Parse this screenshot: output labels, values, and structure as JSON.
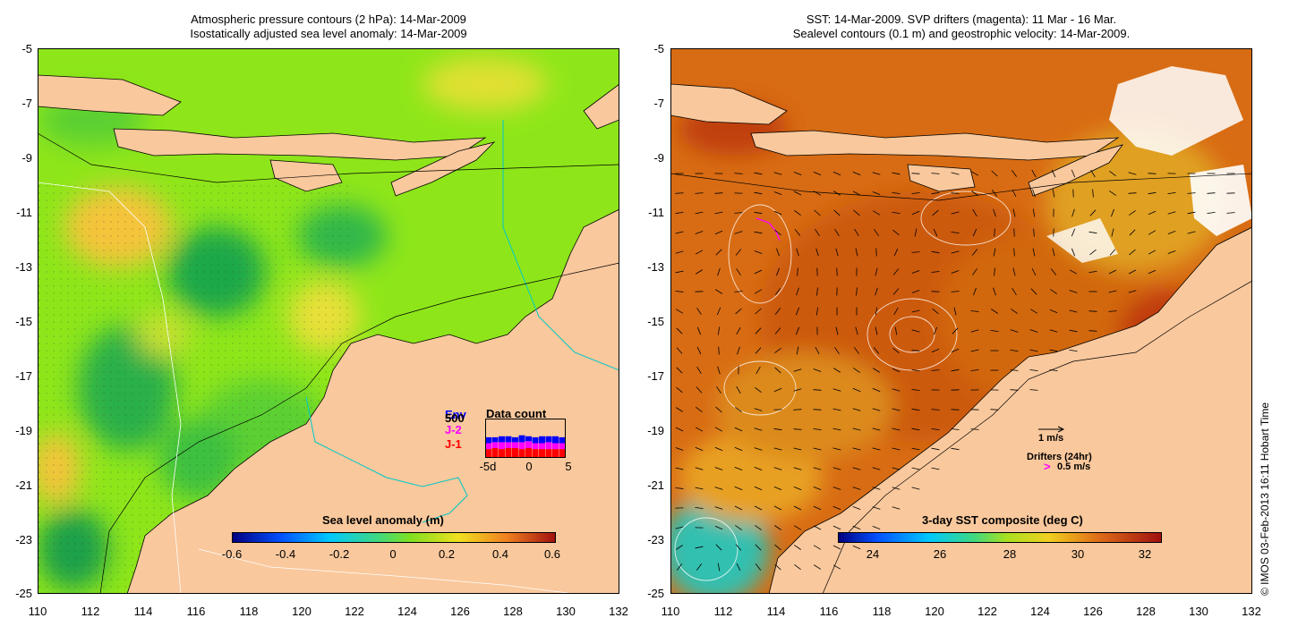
{
  "left_panel": {
    "title_line1": "Atmospheric pressure contours (2 hPa): 14-Mar-2009",
    "title_line2": "Isostatically adjusted sea level anomaly: 14-Mar-2009",
    "colorbar_label": "Sea level anomaly (m)",
    "colorbar_ticks": [
      "-0.6",
      "-0.4",
      "-0.2",
      "0",
      "0.2",
      "0.4",
      "0.6"
    ],
    "y_ticks": [
      "-5",
      "-7",
      "-9",
      "-11",
      "-13",
      "-15",
      "-17",
      "-19",
      "-21",
      "-23",
      "-25"
    ],
    "x_ticks": [
      "110",
      "112",
      "114",
      "116",
      "118",
      "120",
      "122",
      "124",
      "126",
      "128",
      "130",
      "132"
    ],
    "data_count": {
      "title": "Data count",
      "legend": [
        {
          "label": "Env",
          "color": "#0000ff"
        },
        {
          "label": "500",
          "color": "#000000"
        },
        {
          "label": "J-2",
          "color": "#ff00ff"
        },
        {
          "label": "J-1",
          "color": "#ff0000"
        }
      ],
      "x_ticks": [
        "-5d",
        "0",
        "5"
      ],
      "bars_j1": [
        0.45,
        0.5,
        0.45,
        0.5,
        0.5,
        0.45,
        0.5,
        0.45,
        0.45,
        0.45,
        0.45,
        0.45
      ],
      "bars_j2": [
        0.3,
        0.3,
        0.35,
        0.3,
        0.3,
        0.35,
        0.35,
        0.3,
        0.3,
        0.35,
        0.3,
        0.3
      ],
      "bars_env": [
        0.3,
        0.25,
        0.3,
        0.3,
        0.25,
        0.35,
        0.25,
        0.3,
        0.35,
        0.3,
        0.35,
        0.3
      ]
    }
  },
  "right_panel": {
    "title_line1": "SST: 14-Mar-2009. SVP drifters (magenta): 11 Mar - 16 Mar.",
    "title_line2": "Sealevel contours (0.1 m) and geostrophic velocity: 14-Mar-2009.",
    "colorbar_label": "3-day SST composite (deg C)",
    "colorbar_ticks": [
      "24",
      "26",
      "28",
      "30",
      "32"
    ],
    "y_ticks": [
      "-5",
      "-7",
      "-9",
      "-11",
      "-13",
      "-15",
      "-17",
      "-19",
      "-21",
      "-23",
      "-25"
    ],
    "x_ticks": [
      "110",
      "112",
      "114",
      "116",
      "118",
      "120",
      "122",
      "124",
      "126",
      "128",
      "130",
      "132"
    ],
    "velocity_scale_label": "1 m/s",
    "drifters_label": "Drifters (24hr)",
    "drifters_symbol": ">",
    "drifters_speed": "0.5 m/s"
  },
  "credit": "© IMOS 03-Feb-2013 16:11 Hobart Time",
  "colors": {
    "land": "#f9c89c",
    "sea_green": "#7ce81a",
    "sst_orange": "#d66a12",
    "shelf_line": "#00c8c8"
  }
}
